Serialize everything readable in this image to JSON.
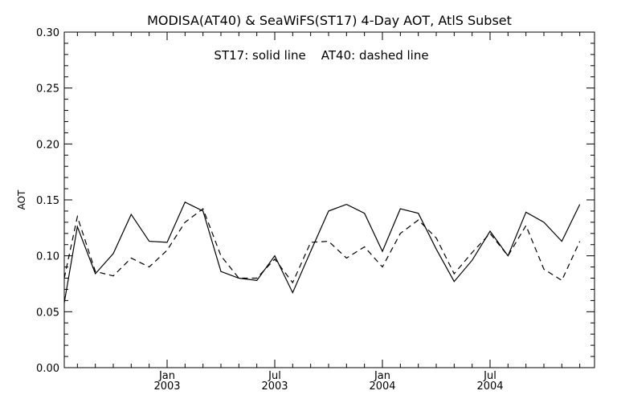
{
  "chart_data": {
    "type": "line",
    "title": "MODISA(AT40) & SeaWiFS(ST17) 4-Day AOT, AtlS Subset",
    "annotation": "ST17: solid line    AT40: dashed line",
    "ylabel": "AOT",
    "xlabel": "",
    "ylim": [
      0.0,
      0.3
    ],
    "yticks": [
      "0.00",
      "0.05",
      "0.10",
      "0.15",
      "0.20",
      "0.25",
      "0.30"
    ],
    "xticks": [
      {
        "label": "Jan",
        "year": "2003"
      },
      {
        "label": "Jul",
        "year": "2003"
      },
      {
        "label": "Jan",
        "year": "2004"
      },
      {
        "label": "Jul",
        "year": "2004"
      }
    ],
    "grid": false,
    "x": [
      "2002-07",
      "2002-08",
      "2002-09",
      "2002-10",
      "2002-11",
      "2002-12",
      "2003-01",
      "2003-02",
      "2003-03",
      "2003-04",
      "2003-05",
      "2003-06",
      "2003-07",
      "2003-08",
      "2003-09",
      "2003-10",
      "2003-11",
      "2003-12",
      "2004-01",
      "2004-02",
      "2004-03",
      "2004-04",
      "2004-05",
      "2004-06",
      "2004-07",
      "2004-08",
      "2004-09",
      "2004-10",
      "2004-11",
      "2004-12"
    ],
    "series": [
      {
        "name": "ST17",
        "style": "solid",
        "values": [
          0.058,
          0.126,
          0.084,
          0.102,
          0.137,
          0.113,
          0.112,
          0.148,
          0.14,
          0.086,
          0.08,
          0.078,
          0.1,
          0.067,
          0.104,
          0.14,
          0.146,
          0.138,
          0.104,
          0.142,
          0.138,
          0.106,
          0.077,
          0.096,
          0.122,
          0.1,
          0.139,
          0.13,
          0.113,
          0.146
        ]
      },
      {
        "name": "AT40",
        "style": "dashed",
        "values": [
          0.08,
          0.135,
          0.086,
          0.082,
          0.098,
          0.09,
          0.105,
          0.13,
          0.142,
          0.1,
          0.08,
          0.08,
          0.097,
          0.076,
          0.112,
          0.113,
          0.098,
          0.108,
          0.09,
          0.12,
          0.132,
          0.116,
          0.084,
          0.103,
          0.12,
          0.1,
          0.127,
          0.088,
          0.078,
          0.113
        ]
      }
    ]
  }
}
